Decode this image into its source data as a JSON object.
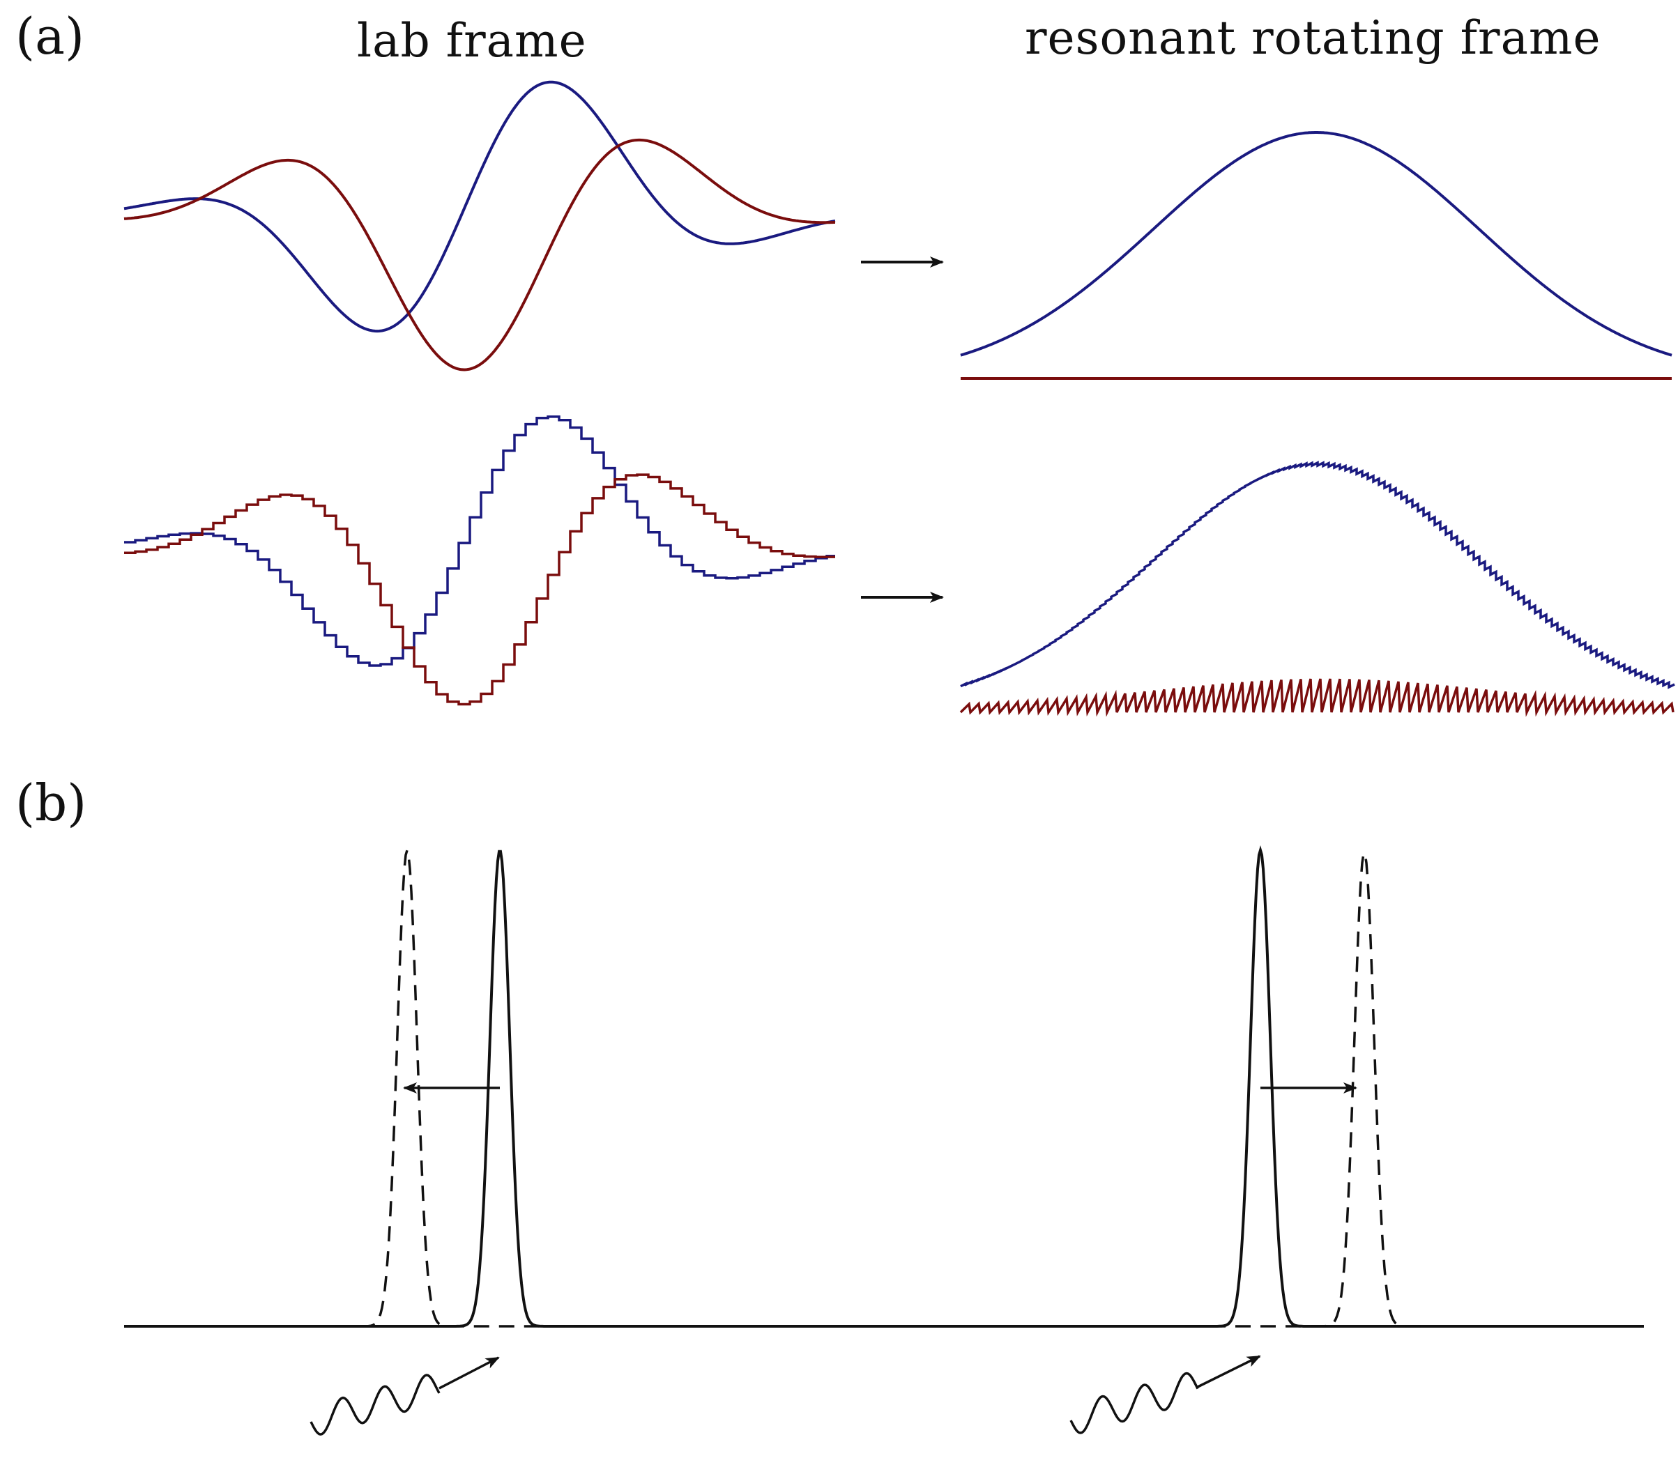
{
  "panel_a_label": "(a)",
  "panel_b_label": "(b)",
  "lab_frame_title": "lab frame",
  "rotating_frame_title": "resonant rotating frame",
  "colors": {
    "blue": "#1a1a80",
    "red": "#7a0d0d",
    "black": "#111111"
  }
}
